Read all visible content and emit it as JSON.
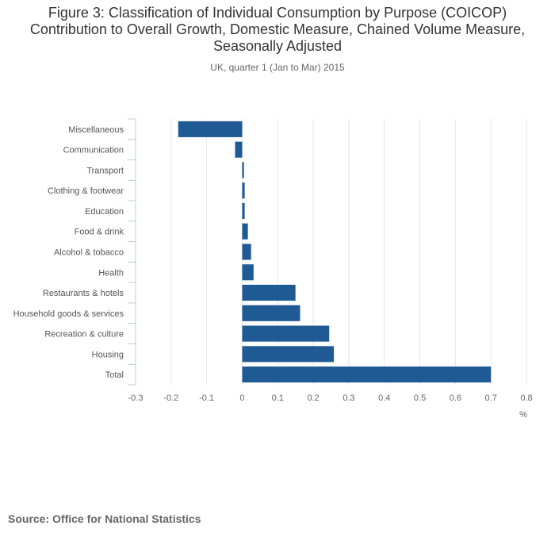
{
  "figure": {
    "title": "Figure 3: Classification of Individual Consumption by Purpose (COICOP) Contribution to Overall Growth, Domestic Measure, Chained Volume Measure, Seasonally Adjusted",
    "subtitle": "UK, quarter 1 (Jan to Mar) 2015",
    "source": "Source: Office for National Statistics"
  },
  "colors": {
    "bar": "#1f5a94",
    "gridline": "#e6e6e6",
    "axis": "#c0c8d8",
    "tick_text": "#666666",
    "category_text": "#555555"
  },
  "chart_data": {
    "type": "bar",
    "orientation": "horizontal",
    "title": "Figure 3: Classification of Individual Consumption by Purpose (COICOP) Contribution to Overall Growth, Domestic Measure, Chained Volume Measure, Seasonally Adjusted",
    "subtitle": "UK, quarter 1 (Jan to Mar) 2015",
    "categories": [
      "Miscellaneous",
      "Communication",
      "Transport",
      "Clothing & footwear",
      "Education",
      "Food & drink",
      "Alcohol & tobacco",
      "Health",
      "Restaurants & hotels",
      "Household goods & services",
      "Recreation & culture",
      "Housing",
      "Total"
    ],
    "values": [
      -0.18,
      -0.02,
      0.005,
      0.007,
      0.007,
      0.016,
      0.025,
      0.032,
      0.15,
      0.163,
      0.245,
      0.258,
      0.7
    ],
    "xlabel": "%",
    "ylabel": "",
    "xlim": [
      -0.3,
      0.8
    ],
    "xticks": [
      -0.3,
      -0.2,
      -0.1,
      0,
      0.1,
      0.2,
      0.3,
      0.4,
      0.5,
      0.6,
      0.7,
      0.8
    ],
    "xtick_labels": [
      "-0.3",
      "-0.2",
      "-0.1",
      "0",
      "0.1",
      "0.2",
      "0.3",
      "0.4",
      "0.5",
      "0.6",
      "0.7",
      "0.8"
    ],
    "grid": true,
    "legend": "none"
  }
}
